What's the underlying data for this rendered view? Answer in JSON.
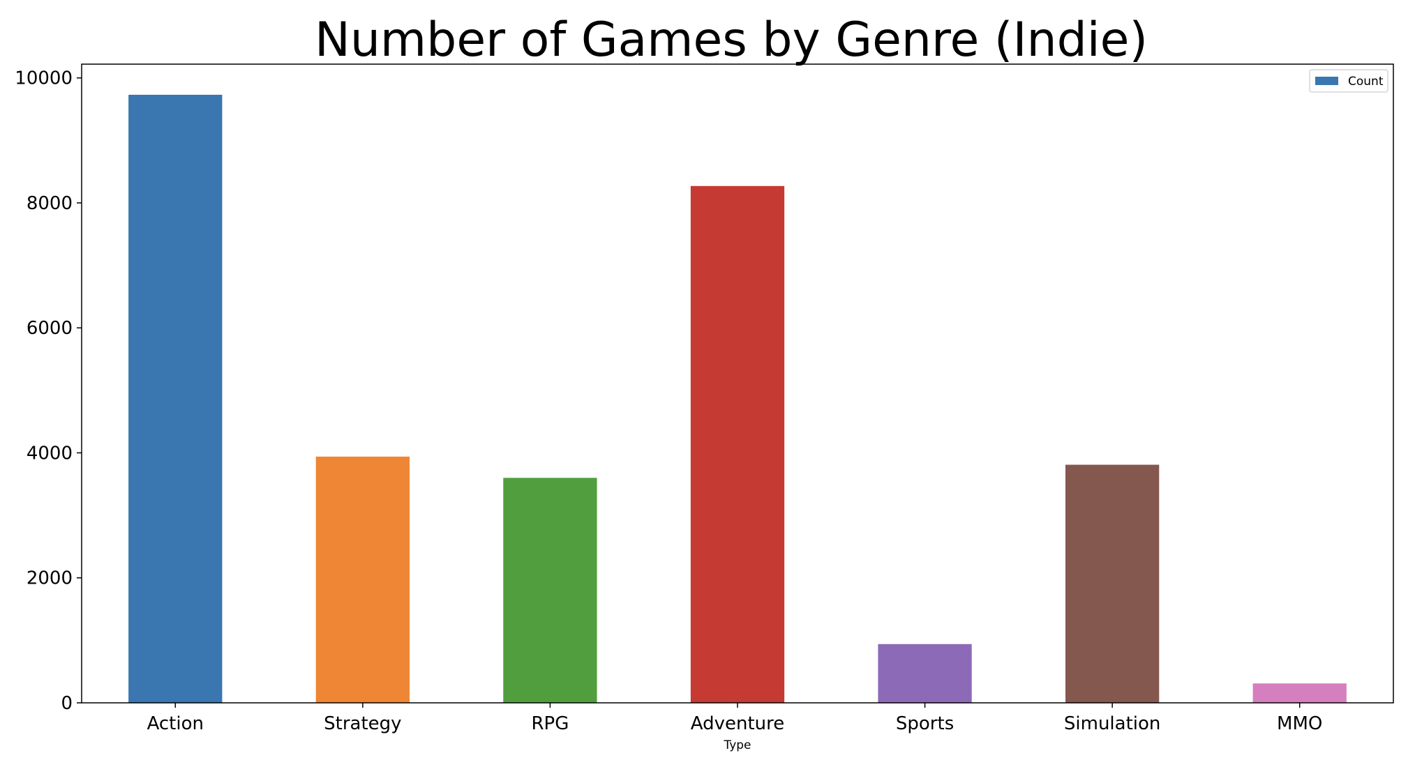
{
  "chart_data": {
    "type": "bar",
    "title": "Number of Games by Genre (Indie)",
    "xlabel": "Type",
    "ylabel": "",
    "categories": [
      "Action",
      "Strategy",
      "RPG",
      "Adventure",
      "Sports",
      "Simulation",
      "MMO"
    ],
    "series": [
      {
        "name": "Count",
        "values": [
          9730,
          3940,
          3600,
          8270,
          940,
          3810,
          310
        ]
      }
    ],
    "bar_colors": [
      "#3a76af",
      "#ef8636",
      "#519e3e",
      "#c53a32",
      "#8d6ab8",
      "#84584e",
      "#d57fbe"
    ],
    "legend_color": "#3a76af",
    "yticks": [
      0,
      2000,
      4000,
      6000,
      8000,
      10000
    ],
    "ylim": [
      0,
      10220
    ],
    "grid": false,
    "legend_position": "top-right"
  }
}
